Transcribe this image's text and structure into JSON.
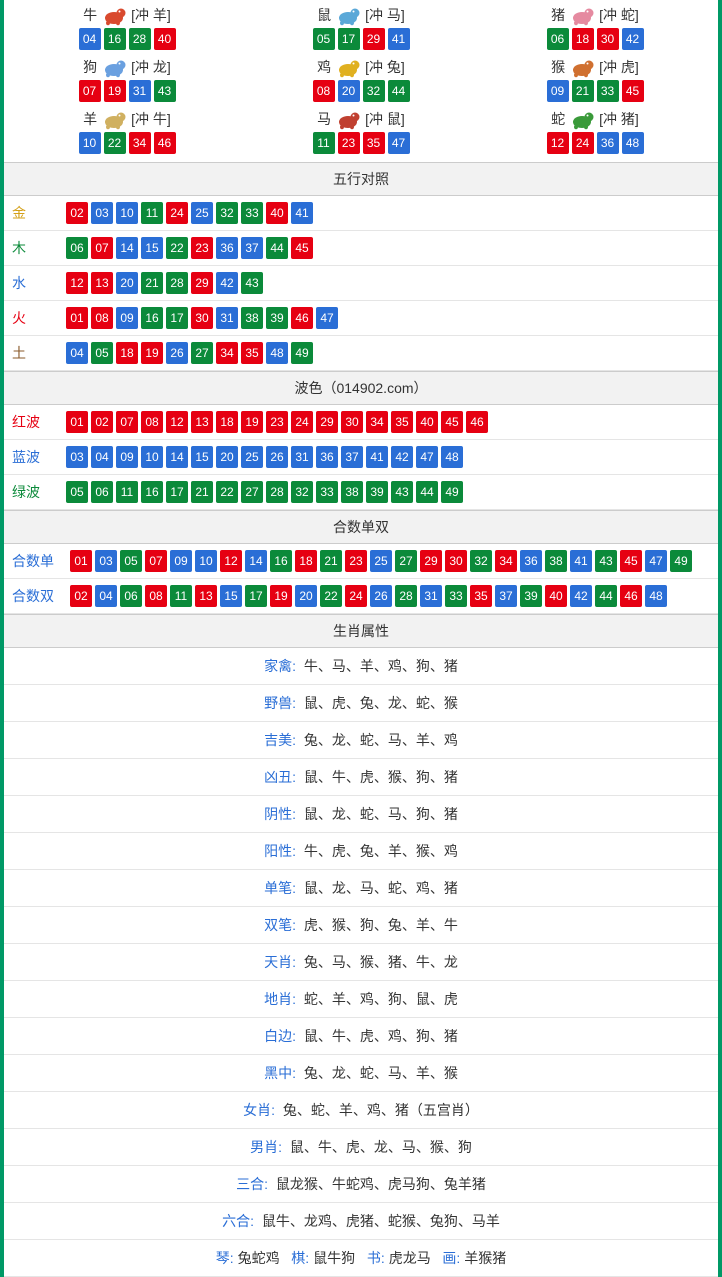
{
  "colors": {
    "red": "#e60012",
    "blue": "#2a6ed6",
    "green": "#0b8a3a",
    "border": "#009966",
    "header_bg": "#f2f2f2",
    "divider": "#e5e5e5",
    "gold": "#d4a017",
    "wood": "#0b8a3a",
    "water": "#2a6ed6",
    "fire": "#e60012",
    "earth": "#8a5a2a"
  },
  "zodiac_colors": {
    "牛": "#d94a2e",
    "鼠": "#5aa8d8",
    "猪": "#e58aa0",
    "狗": "#6aa0e0",
    "鸡": "#e0b020",
    "猴": "#d07030",
    "羊": "#d0b060",
    "马": "#c04030",
    "蛇": "#3a9a3a"
  },
  "zodiac": [
    {
      "name": "牛",
      "chong": "[冲 羊]",
      "balls": [
        {
          "n": "04",
          "c": "blue"
        },
        {
          "n": "16",
          "c": "green"
        },
        {
          "n": "28",
          "c": "green"
        },
        {
          "n": "40",
          "c": "red"
        }
      ]
    },
    {
      "name": "鼠",
      "chong": "[冲 马]",
      "balls": [
        {
          "n": "05",
          "c": "green"
        },
        {
          "n": "17",
          "c": "green"
        },
        {
          "n": "29",
          "c": "red"
        },
        {
          "n": "41",
          "c": "blue"
        }
      ]
    },
    {
      "name": "猪",
      "chong": "[冲 蛇]",
      "balls": [
        {
          "n": "06",
          "c": "green"
        },
        {
          "n": "18",
          "c": "red"
        },
        {
          "n": "30",
          "c": "red"
        },
        {
          "n": "42",
          "c": "blue"
        }
      ]
    },
    {
      "name": "狗",
      "chong": "[冲 龙]",
      "balls": [
        {
          "n": "07",
          "c": "red"
        },
        {
          "n": "19",
          "c": "red"
        },
        {
          "n": "31",
          "c": "blue"
        },
        {
          "n": "43",
          "c": "green"
        }
      ]
    },
    {
      "name": "鸡",
      "chong": "[冲 兔]",
      "balls": [
        {
          "n": "08",
          "c": "red"
        },
        {
          "n": "20",
          "c": "blue"
        },
        {
          "n": "32",
          "c": "green"
        },
        {
          "n": "44",
          "c": "green"
        }
      ]
    },
    {
      "name": "猴",
      "chong": "[冲 虎]",
      "balls": [
        {
          "n": "09",
          "c": "blue"
        },
        {
          "n": "21",
          "c": "green"
        },
        {
          "n": "33",
          "c": "green"
        },
        {
          "n": "45",
          "c": "red"
        }
      ]
    },
    {
      "name": "羊",
      "chong": "[冲 牛]",
      "balls": [
        {
          "n": "10",
          "c": "blue"
        },
        {
          "n": "22",
          "c": "green"
        },
        {
          "n": "34",
          "c": "red"
        },
        {
          "n": "46",
          "c": "red"
        }
      ]
    },
    {
      "name": "马",
      "chong": "[冲 鼠]",
      "balls": [
        {
          "n": "11",
          "c": "green"
        },
        {
          "n": "23",
          "c": "red"
        },
        {
          "n": "35",
          "c": "red"
        },
        {
          "n": "47",
          "c": "blue"
        }
      ]
    },
    {
      "name": "蛇",
      "chong": "[冲 猪]",
      "balls": [
        {
          "n": "12",
          "c": "red"
        },
        {
          "n": "24",
          "c": "red"
        },
        {
          "n": "36",
          "c": "blue"
        },
        {
          "n": "48",
          "c": "blue"
        }
      ]
    }
  ],
  "wuxing_title": "五行对照",
  "wuxing": [
    {
      "label": "金",
      "cls": "gold",
      "balls": [
        {
          "n": "02",
          "c": "red"
        },
        {
          "n": "03",
          "c": "blue"
        },
        {
          "n": "10",
          "c": "blue"
        },
        {
          "n": "11",
          "c": "green"
        },
        {
          "n": "24",
          "c": "red"
        },
        {
          "n": "25",
          "c": "blue"
        },
        {
          "n": "32",
          "c": "green"
        },
        {
          "n": "33",
          "c": "green"
        },
        {
          "n": "40",
          "c": "red"
        },
        {
          "n": "41",
          "c": "blue"
        }
      ]
    },
    {
      "label": "木",
      "cls": "wood",
      "balls": [
        {
          "n": "06",
          "c": "green"
        },
        {
          "n": "07",
          "c": "red"
        },
        {
          "n": "14",
          "c": "blue"
        },
        {
          "n": "15",
          "c": "blue"
        },
        {
          "n": "22",
          "c": "green"
        },
        {
          "n": "23",
          "c": "red"
        },
        {
          "n": "36",
          "c": "blue"
        },
        {
          "n": "37",
          "c": "blue"
        },
        {
          "n": "44",
          "c": "green"
        },
        {
          "n": "45",
          "c": "red"
        }
      ]
    },
    {
      "label": "水",
      "cls": "water",
      "balls": [
        {
          "n": "12",
          "c": "red"
        },
        {
          "n": "13",
          "c": "red"
        },
        {
          "n": "20",
          "c": "blue"
        },
        {
          "n": "21",
          "c": "green"
        },
        {
          "n": "28",
          "c": "green"
        },
        {
          "n": "29",
          "c": "red"
        },
        {
          "n": "42",
          "c": "blue"
        },
        {
          "n": "43",
          "c": "green"
        }
      ]
    },
    {
      "label": "火",
      "cls": "fire",
      "balls": [
        {
          "n": "01",
          "c": "red"
        },
        {
          "n": "08",
          "c": "red"
        },
        {
          "n": "09",
          "c": "blue"
        },
        {
          "n": "16",
          "c": "green"
        },
        {
          "n": "17",
          "c": "green"
        },
        {
          "n": "30",
          "c": "red"
        },
        {
          "n": "31",
          "c": "blue"
        },
        {
          "n": "38",
          "c": "green"
        },
        {
          "n": "39",
          "c": "green"
        },
        {
          "n": "46",
          "c": "red"
        },
        {
          "n": "47",
          "c": "blue"
        }
      ]
    },
    {
      "label": "土",
      "cls": "earth",
      "balls": [
        {
          "n": "04",
          "c": "blue"
        },
        {
          "n": "05",
          "c": "green"
        },
        {
          "n": "18",
          "c": "red"
        },
        {
          "n": "19",
          "c": "red"
        },
        {
          "n": "26",
          "c": "blue"
        },
        {
          "n": "27",
          "c": "green"
        },
        {
          "n": "34",
          "c": "red"
        },
        {
          "n": "35",
          "c": "red"
        },
        {
          "n": "48",
          "c": "blue"
        },
        {
          "n": "49",
          "c": "green"
        }
      ]
    }
  ],
  "bose_title": "波色（014902.com）",
  "bose": [
    {
      "label": "红波",
      "cls": "redtxt",
      "balls": [
        {
          "n": "01",
          "c": "red"
        },
        {
          "n": "02",
          "c": "red"
        },
        {
          "n": "07",
          "c": "red"
        },
        {
          "n": "08",
          "c": "red"
        },
        {
          "n": "12",
          "c": "red"
        },
        {
          "n": "13",
          "c": "red"
        },
        {
          "n": "18",
          "c": "red"
        },
        {
          "n": "19",
          "c": "red"
        },
        {
          "n": "23",
          "c": "red"
        },
        {
          "n": "24",
          "c": "red"
        },
        {
          "n": "29",
          "c": "red"
        },
        {
          "n": "30",
          "c": "red"
        },
        {
          "n": "34",
          "c": "red"
        },
        {
          "n": "35",
          "c": "red"
        },
        {
          "n": "40",
          "c": "red"
        },
        {
          "n": "45",
          "c": "red"
        },
        {
          "n": "46",
          "c": "red"
        }
      ]
    },
    {
      "label": "蓝波",
      "cls": "bluetxt",
      "balls": [
        {
          "n": "03",
          "c": "blue"
        },
        {
          "n": "04",
          "c": "blue"
        },
        {
          "n": "09",
          "c": "blue"
        },
        {
          "n": "10",
          "c": "blue"
        },
        {
          "n": "14",
          "c": "blue"
        },
        {
          "n": "15",
          "c": "blue"
        },
        {
          "n": "20",
          "c": "blue"
        },
        {
          "n": "25",
          "c": "blue"
        },
        {
          "n": "26",
          "c": "blue"
        },
        {
          "n": "31",
          "c": "blue"
        },
        {
          "n": "36",
          "c": "blue"
        },
        {
          "n": "37",
          "c": "blue"
        },
        {
          "n": "41",
          "c": "blue"
        },
        {
          "n": "42",
          "c": "blue"
        },
        {
          "n": "47",
          "c": "blue"
        },
        {
          "n": "48",
          "c": "blue"
        }
      ]
    },
    {
      "label": "绿波",
      "cls": "greentxt",
      "balls": [
        {
          "n": "05",
          "c": "green"
        },
        {
          "n": "06",
          "c": "green"
        },
        {
          "n": "11",
          "c": "green"
        },
        {
          "n": "16",
          "c": "green"
        },
        {
          "n": "17",
          "c": "green"
        },
        {
          "n": "21",
          "c": "green"
        },
        {
          "n": "22",
          "c": "green"
        },
        {
          "n": "27",
          "c": "green"
        },
        {
          "n": "28",
          "c": "green"
        },
        {
          "n": "32",
          "c": "green"
        },
        {
          "n": "33",
          "c": "green"
        },
        {
          "n": "38",
          "c": "green"
        },
        {
          "n": "39",
          "c": "green"
        },
        {
          "n": "43",
          "c": "green"
        },
        {
          "n": "44",
          "c": "green"
        },
        {
          "n": "49",
          "c": "green"
        }
      ]
    }
  ],
  "heshu_title": "合数单双",
  "heshu": [
    {
      "label": "合数单",
      "cls": "bluetxt",
      "balls": [
        {
          "n": "01",
          "c": "red"
        },
        {
          "n": "03",
          "c": "blue"
        },
        {
          "n": "05",
          "c": "green"
        },
        {
          "n": "07",
          "c": "red"
        },
        {
          "n": "09",
          "c": "blue"
        },
        {
          "n": "10",
          "c": "blue"
        },
        {
          "n": "12",
          "c": "red"
        },
        {
          "n": "14",
          "c": "blue"
        },
        {
          "n": "16",
          "c": "green"
        },
        {
          "n": "18",
          "c": "red"
        },
        {
          "n": "21",
          "c": "green"
        },
        {
          "n": "23",
          "c": "red"
        },
        {
          "n": "25",
          "c": "blue"
        },
        {
          "n": "27",
          "c": "green"
        },
        {
          "n": "29",
          "c": "red"
        },
        {
          "n": "30",
          "c": "red"
        },
        {
          "n": "32",
          "c": "green"
        },
        {
          "n": "34",
          "c": "red"
        },
        {
          "n": "36",
          "c": "blue"
        },
        {
          "n": "38",
          "c": "green"
        },
        {
          "n": "41",
          "c": "blue"
        },
        {
          "n": "43",
          "c": "green"
        },
        {
          "n": "45",
          "c": "red"
        },
        {
          "n": "47",
          "c": "blue"
        },
        {
          "n": "49",
          "c": "green"
        }
      ]
    },
    {
      "label": "合数双",
      "cls": "bluetxt",
      "balls": [
        {
          "n": "02",
          "c": "red"
        },
        {
          "n": "04",
          "c": "blue"
        },
        {
          "n": "06",
          "c": "green"
        },
        {
          "n": "08",
          "c": "red"
        },
        {
          "n": "11",
          "c": "green"
        },
        {
          "n": "13",
          "c": "red"
        },
        {
          "n": "15",
          "c": "blue"
        },
        {
          "n": "17",
          "c": "green"
        },
        {
          "n": "19",
          "c": "red"
        },
        {
          "n": "20",
          "c": "blue"
        },
        {
          "n": "22",
          "c": "green"
        },
        {
          "n": "24",
          "c": "red"
        },
        {
          "n": "26",
          "c": "blue"
        },
        {
          "n": "28",
          "c": "green"
        },
        {
          "n": "31",
          "c": "blue"
        },
        {
          "n": "33",
          "c": "green"
        },
        {
          "n": "35",
          "c": "red"
        },
        {
          "n": "37",
          "c": "blue"
        },
        {
          "n": "39",
          "c": "green"
        },
        {
          "n": "40",
          "c": "red"
        },
        {
          "n": "42",
          "c": "blue"
        },
        {
          "n": "44",
          "c": "green"
        },
        {
          "n": "46",
          "c": "red"
        },
        {
          "n": "48",
          "c": "blue"
        }
      ]
    }
  ],
  "attr_title": "生肖属性",
  "attrs": [
    {
      "label": "家禽:",
      "value": "牛、马、羊、鸡、狗、猪"
    },
    {
      "label": "野兽:",
      "value": "鼠、虎、兔、龙、蛇、猴"
    },
    {
      "label": "吉美:",
      "value": "兔、龙、蛇、马、羊、鸡"
    },
    {
      "label": "凶丑:",
      "value": "鼠、牛、虎、猴、狗、猪"
    },
    {
      "label": "阴性:",
      "value": "鼠、龙、蛇、马、狗、猪"
    },
    {
      "label": "阳性:",
      "value": "牛、虎、兔、羊、猴、鸡"
    },
    {
      "label": "单笔:",
      "value": "鼠、龙、马、蛇、鸡、猪"
    },
    {
      "label": "双笔:",
      "value": "虎、猴、狗、兔、羊、牛"
    },
    {
      "label": "天肖:",
      "value": "兔、马、猴、猪、牛、龙"
    },
    {
      "label": "地肖:",
      "value": "蛇、羊、鸡、狗、鼠、虎"
    },
    {
      "label": "白边:",
      "value": "鼠、牛、虎、鸡、狗、猪"
    },
    {
      "label": "黑中:",
      "value": "兔、龙、蛇、马、羊、猴"
    },
    {
      "label": "女肖:",
      "value": "兔、蛇、羊、鸡、猪（五宫肖）"
    },
    {
      "label": "男肖:",
      "value": "鼠、牛、虎、龙、马、猴、狗"
    },
    {
      "label": "三合:",
      "value": "鼠龙猴、牛蛇鸡、虎马狗、兔羊猪"
    },
    {
      "label": "六合:",
      "value": "鼠牛、龙鸡、虎猪、蛇猴、兔狗、马羊"
    }
  ],
  "footer_parts": [
    {
      "label": "琴:",
      "value": "兔蛇鸡"
    },
    {
      "label": "棋:",
      "value": "鼠牛狗"
    },
    {
      "label": "书:",
      "value": "虎龙马"
    },
    {
      "label": "画:",
      "value": "羊猴猪"
    }
  ]
}
